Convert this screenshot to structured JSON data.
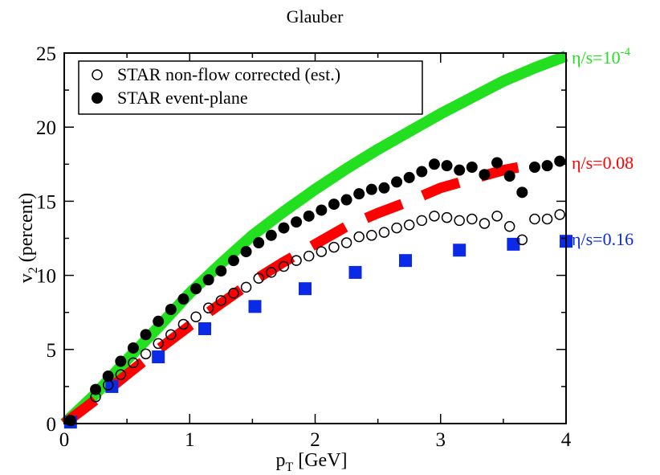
{
  "chart_data": {
    "type": "scatter",
    "title": "Glauber",
    "xlabel": {
      "main": "p",
      "sub": "T",
      "rest": " [GeV]"
    },
    "ylabel": {
      "main": "v",
      "sub": "2",
      "rest": " (percent)"
    },
    "xlim": [
      0,
      4
    ],
    "ylim": [
      0,
      25
    ],
    "xticks": [
      "0",
      "1",
      "2",
      "3",
      "4"
    ],
    "yticks": [
      "0",
      "5",
      "10",
      "15",
      "20",
      "25"
    ],
    "grid": false,
    "legend_position": "top-left",
    "legend": [
      {
        "label": "STAR non-flow corrected (est.)",
        "marker": "open-circle"
      },
      {
        "label": "STAR event-plane",
        "marker": "filled-circle"
      }
    ],
    "series": [
      {
        "name": "STAR non-flow corrected (est.)",
        "style": "open-circle",
        "color": "#000000",
        "x": [
          0.05,
          0.25,
          0.35,
          0.45,
          0.55,
          0.65,
          0.75,
          0.85,
          0.95,
          1.05,
          1.15,
          1.25,
          1.35,
          1.45,
          1.55,
          1.65,
          1.75,
          1.85,
          1.95,
          2.05,
          2.15,
          2.25,
          2.35,
          2.45,
          2.55,
          2.65,
          2.75,
          2.85,
          2.95,
          3.05,
          3.15,
          3.25,
          3.35,
          3.45,
          3.55,
          3.65,
          3.75,
          3.85,
          3.95
        ],
        "y": [
          0.2,
          1.8,
          2.6,
          3.3,
          4.1,
          4.7,
          5.4,
          6.0,
          6.7,
          7.2,
          7.8,
          8.3,
          8.8,
          9.2,
          9.8,
          10.2,
          10.6,
          11.0,
          11.3,
          11.6,
          11.9,
          12.2,
          12.6,
          12.7,
          12.9,
          13.2,
          13.4,
          13.7,
          14.0,
          13.9,
          13.7,
          13.8,
          13.5,
          14.0,
          13.3,
          12.4,
          13.8,
          13.8,
          14.1
        ]
      },
      {
        "name": "STAR event-plane",
        "style": "filled-circle",
        "color": "#000000",
        "x": [
          0.05,
          0.25,
          0.35,
          0.45,
          0.55,
          0.65,
          0.75,
          0.85,
          0.95,
          1.05,
          1.15,
          1.25,
          1.35,
          1.45,
          1.55,
          1.65,
          1.75,
          1.85,
          1.95,
          2.05,
          2.15,
          2.25,
          2.35,
          2.45,
          2.55,
          2.65,
          2.75,
          2.85,
          2.95,
          3.05,
          3.15,
          3.25,
          3.35,
          3.45,
          3.55,
          3.65,
          3.75,
          3.85,
          3.95
        ],
        "y": [
          0.2,
          2.3,
          3.2,
          4.2,
          5.1,
          6.0,
          6.9,
          7.7,
          8.4,
          9.1,
          9.7,
          10.3,
          11.0,
          11.6,
          12.2,
          12.7,
          13.2,
          13.6,
          14.0,
          14.4,
          14.8,
          15.1,
          15.5,
          15.8,
          15.9,
          16.3,
          16.6,
          17.0,
          17.5,
          17.4,
          17.1,
          17.3,
          16.8,
          17.6,
          16.7,
          15.6,
          17.3,
          17.4,
          17.7
        ]
      },
      {
        "name": "η/s=10^-4",
        "style": "thick-line",
        "color": "#22e01f",
        "x": [
          0.0,
          0.25,
          0.5,
          0.75,
          1.0,
          1.25,
          1.5,
          1.75,
          2.0,
          2.25,
          2.5,
          2.75,
          3.0,
          3.25,
          3.5,
          3.75,
          4.0
        ],
        "y": [
          0.0,
          2.0,
          4.3,
          6.5,
          8.8,
          10.8,
          12.7,
          14.3,
          15.8,
          17.2,
          18.5,
          19.7,
          20.9,
          22.0,
          23.1,
          24.0,
          24.8
        ]
      },
      {
        "name": "η/s=0.08",
        "style": "dashed",
        "color": "#ff0000",
        "x": [
          0.0,
          0.25,
          0.5,
          0.75,
          1.0,
          1.25,
          1.5,
          1.75,
          2.0,
          2.25,
          2.5,
          2.75,
          3.0,
          3.25,
          3.5,
          3.75
        ],
        "y": [
          0.0,
          1.6,
          3.3,
          5.0,
          6.6,
          8.1,
          9.6,
          10.9,
          12.1,
          13.3,
          14.2,
          15.0,
          15.9,
          16.5,
          17.1,
          17.5
        ]
      },
      {
        "name": "η/s=0.16",
        "style": "square",
        "color": "#0a2ae6",
        "x": [
          0.05,
          0.38,
          0.75,
          1.12,
          1.52,
          1.92,
          2.32,
          2.72,
          3.15,
          3.58,
          4.0
        ],
        "y": [
          0.1,
          2.5,
          4.5,
          6.4,
          7.9,
          9.1,
          10.2,
          11.0,
          11.7,
          12.1,
          12.3
        ]
      }
    ],
    "annotations": [
      {
        "text": "η/s=10",
        "sup": "-4",
        "color": "#22e01f"
      },
      {
        "text": "η/s=0.08",
        "color": "#ff0000"
      },
      {
        "text": "η/s=0.16",
        "color": "#0a2ae6"
      }
    ]
  }
}
